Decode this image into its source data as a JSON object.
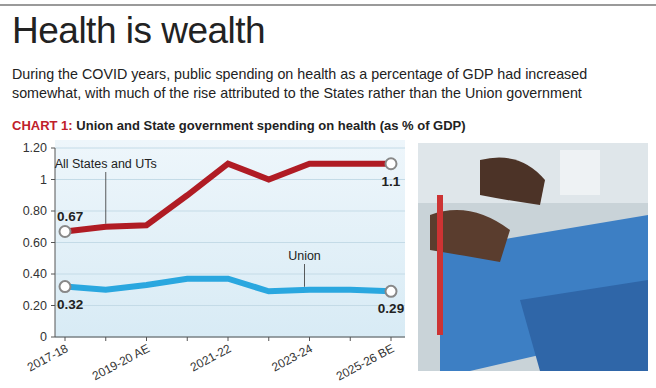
{
  "chart_data": {
    "type": "line",
    "title": "Health is wealth",
    "subtitle": "During the COVID years, public spending on health as a percentage of GDP had increased somewhat, with much of the rise attributed to the States rather than the Union government",
    "chart_number": "CHART 1:",
    "chart_title": "Union and State government spending on health (as % of GDP)",
    "categories": [
      "2017-18",
      null,
      "2019-20 AE",
      null,
      "2021-22",
      null,
      "2023-24",
      null,
      "2025-26 BE"
    ],
    "series": [
      {
        "name": "All States and UTs",
        "color": "#b01c24",
        "values": [
          0.67,
          0.7,
          0.71,
          0.9,
          1.1,
          1.0,
          1.1,
          1.1,
          1.1
        ],
        "value_labels": [
          "0.67",
          null,
          null,
          null,
          null,
          null,
          null,
          null,
          "1.1"
        ]
      },
      {
        "name": "Union",
        "color": "#2aa7df",
        "values": [
          0.32,
          0.3,
          0.33,
          0.37,
          0.37,
          0.29,
          0.3,
          0.3,
          0.29
        ],
        "value_labels": [
          "0.32",
          null,
          null,
          null,
          null,
          null,
          null,
          null,
          "0.29"
        ]
      }
    ],
    "ylim": [
      0,
      1.2
    ],
    "yticks": [
      0,
      {
        "value": 0.2,
        "label": "0.20"
      },
      {
        "value": 0.4,
        "label": "0.40"
      },
      {
        "value": 0.6,
        "label": "0.60"
      },
      {
        "value": 0.8,
        "label": "0.80"
      },
      1,
      {
        "value": 1.2,
        "label": "1.20"
      }
    ],
    "grid": true
  }
}
